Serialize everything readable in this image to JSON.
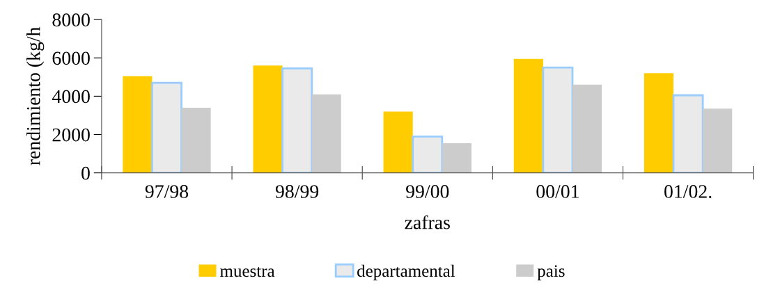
{
  "chart_data": {
    "type": "bar",
    "xlabel": "zafras",
    "ylabel": "rendimiento (kg/h",
    "categories": [
      "97/98",
      "98/99",
      "99/00",
      "00/01",
      "01/02."
    ],
    "series": [
      {
        "name": "muestra",
        "color": "#ffcc00",
        "values": [
          5050,
          5600,
          3200,
          5950,
          5200
        ]
      },
      {
        "name": "departamental",
        "color": "#eaeaea",
        "values": [
          4700,
          5450,
          1900,
          5500,
          4050
        ]
      },
      {
        "name": "pais",
        "color": "#cccccc",
        "values": [
          3400,
          4100,
          1550,
          4600,
          3350
        ]
      }
    ],
    "ylim": [
      0,
      8000
    ],
    "yticks": [
      0,
      2000,
      4000,
      6000,
      8000
    ],
    "grid": false,
    "legend": "bottom"
  }
}
